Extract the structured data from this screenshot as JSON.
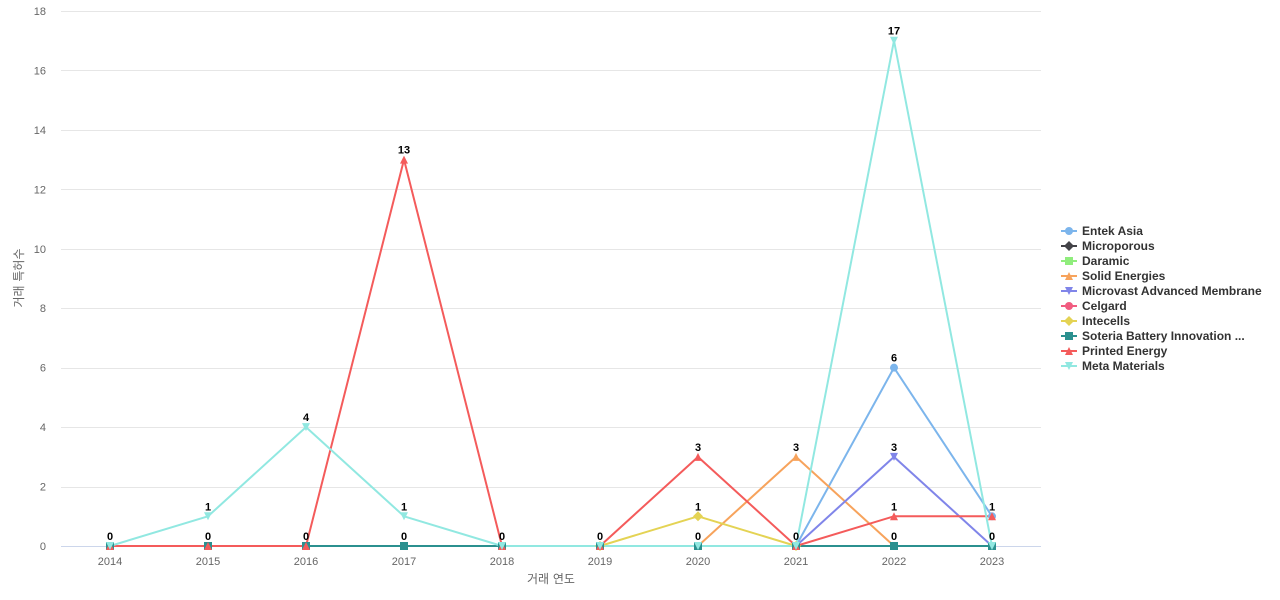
{
  "chart_data": {
    "type": "line",
    "title": "",
    "xlabel": "거래 연도",
    "ylabel": "거래 특허수",
    "ylim": [
      0,
      18
    ],
    "y_ticks": [
      0,
      2,
      4,
      6,
      8,
      10,
      12,
      14,
      16,
      18
    ],
    "grid": true,
    "legend_position": "right",
    "categories": [
      "2014",
      "2015",
      "2016",
      "2017",
      "2018",
      "2019",
      "2020",
      "2021",
      "2022",
      "2023"
    ],
    "series": [
      {
        "name": "Entek Asia",
        "color": "#7cb5ec",
        "marker": "circle",
        "values": [
          null,
          null,
          null,
          null,
          null,
          null,
          null,
          0,
          6,
          1
        ]
      },
      {
        "name": "Microporous",
        "color": "#434348",
        "marker": "diamond",
        "values": [
          null,
          null,
          null,
          null,
          null,
          null,
          null,
          null,
          null,
          null
        ]
      },
      {
        "name": "Daramic",
        "color": "#90ed7d",
        "marker": "square",
        "values": [
          null,
          null,
          null,
          null,
          null,
          null,
          null,
          null,
          null,
          null
        ]
      },
      {
        "name": "Solid Energies",
        "color": "#f7a35c",
        "marker": "triangle",
        "values": [
          null,
          null,
          null,
          null,
          null,
          null,
          0,
          3,
          0,
          null
        ]
      },
      {
        "name": "Microvast Advanced Membrane",
        "color": "#8085e9",
        "marker": "triangle-down",
        "values": [
          null,
          null,
          null,
          null,
          null,
          null,
          null,
          0,
          3,
          0
        ]
      },
      {
        "name": "Celgard",
        "color": "#f15c80",
        "marker": "circle",
        "values": [
          null,
          null,
          null,
          null,
          null,
          null,
          null,
          null,
          null,
          null
        ]
      },
      {
        "name": "Intecells",
        "color": "#e4d354",
        "marker": "diamond",
        "values": [
          null,
          null,
          null,
          null,
          null,
          0,
          1,
          0,
          null,
          null
        ]
      },
      {
        "name": "Soteria Battery Innovation ...",
        "color": "#2b908f",
        "marker": "square",
        "values": [
          0,
          0,
          0,
          0,
          0,
          0,
          0,
          0,
          0,
          0
        ]
      },
      {
        "name": "Printed Energy",
        "color": "#f45b5b",
        "marker": "triangle",
        "values": [
          0,
          0,
          0,
          13,
          0,
          0,
          3,
          0,
          1,
          1
        ]
      },
      {
        "name": "Meta Materials",
        "color": "#91e8e1",
        "marker": "triangle-down",
        "values": [
          0,
          1,
          4,
          1,
          0,
          0,
          0,
          0,
          17,
          0
        ]
      }
    ],
    "data_labels": [
      {
        "category": "2014",
        "value": 0,
        "text": "0"
      },
      {
        "category": "2015",
        "value": 1,
        "text": "1"
      },
      {
        "category": "2015",
        "value": 0,
        "text": "0"
      },
      {
        "category": "2016",
        "value": 4,
        "text": "4"
      },
      {
        "category": "2016",
        "value": 0,
        "text": "0"
      },
      {
        "category": "2017",
        "value": 13,
        "text": "13"
      },
      {
        "category": "2017",
        "value": 1,
        "text": "1"
      },
      {
        "category": "2017",
        "value": 0,
        "text": "0"
      },
      {
        "category": "2018",
        "value": 0,
        "text": "0"
      },
      {
        "category": "2019",
        "value": 0,
        "text": "0"
      },
      {
        "category": "2020",
        "value": 3,
        "text": "3"
      },
      {
        "category": "2020",
        "value": 1,
        "text": "1"
      },
      {
        "category": "2020",
        "value": 0,
        "text": "0"
      },
      {
        "category": "2021",
        "value": 3,
        "text": "3"
      },
      {
        "category": "2021",
        "value": 0,
        "text": "0"
      },
      {
        "category": "2022",
        "value": 17,
        "text": "17"
      },
      {
        "category": "2022",
        "value": 6,
        "text": "6"
      },
      {
        "category": "2022",
        "value": 3,
        "text": "3"
      },
      {
        "category": "2022",
        "value": 1,
        "text": "1"
      },
      {
        "category": "2022",
        "value": 0,
        "text": "0"
      },
      {
        "category": "2023",
        "value": 1,
        "text": "1"
      },
      {
        "category": "2023",
        "value": 0,
        "text": "0"
      }
    ]
  }
}
